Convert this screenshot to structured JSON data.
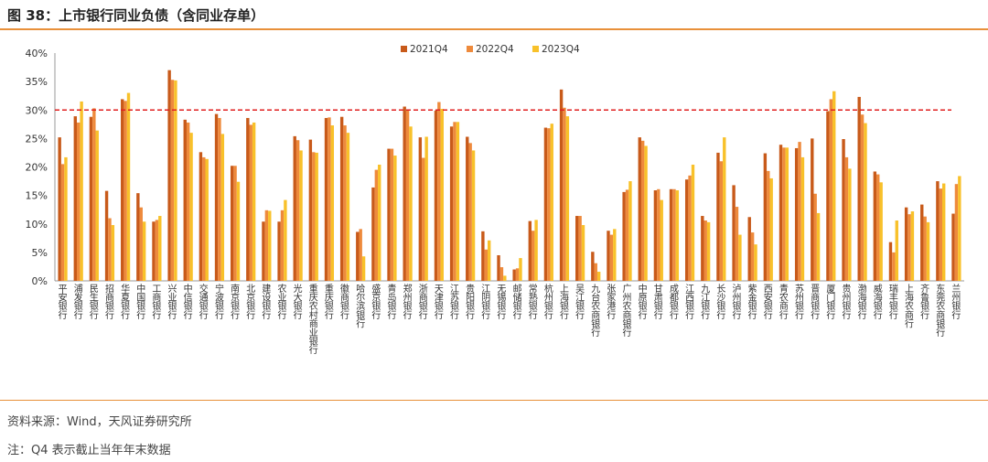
{
  "figure": {
    "title": "图 38：上市银行同业负债（含同业存单）",
    "source": "资料来源：Wind，天风证券研究所",
    "note": "注：Q4 表示截止当年年末数据"
  },
  "colors": {
    "s2021": "#C85A1A",
    "s2022": "#EE8A3C",
    "s2023": "#F8C12A",
    "refline": "#E02020",
    "rule": "#E8903A"
  },
  "chart_data": {
    "type": "bar",
    "title": "",
    "xlabel": "",
    "ylabel": "",
    "ylim": [
      0,
      40
    ],
    "yticks": [
      "0%",
      "5%",
      "10%",
      "15%",
      "20%",
      "25%",
      "30%",
      "35%",
      "40%"
    ],
    "grid": false,
    "legend": "top-center",
    "reference_line": 30,
    "categories": [
      "平安银行",
      "浦发银行",
      "民生银行",
      "招商银行",
      "华夏银行",
      "中国银行",
      "工商银行",
      "兴业银行",
      "中信银行",
      "交通银行",
      "宁波银行",
      "南京银行",
      "北京银行",
      "建设银行",
      "农业银行",
      "光大银行",
      "重庆农村商业银行",
      "重庆银行",
      "徽商银行",
      "哈尔滨银行",
      "盛京银行",
      "青岛银行",
      "郑州银行",
      "浙商银行",
      "天津银行",
      "江苏银行",
      "贵阳银行",
      "江阴银行",
      "无锡银行",
      "邮储银行",
      "常熟银行",
      "杭州银行",
      "上海银行",
      "吴江银行",
      "九台农商银行",
      "张家港行",
      "广州农商银行",
      "中原银行",
      "甘肃银行",
      "成都银行",
      "江西银行",
      "九江银行",
      "长沙银行",
      "泸州银行",
      "紫金银行",
      "西安银行",
      "青农商行",
      "苏州银行",
      "晋商银行",
      "厦门银行",
      "贵州银行",
      "渤海银行",
      "威海银行",
      "瑞丰银行",
      "上海农商行",
      "齐鲁银行",
      "东莞农商银行",
      "兰州银行"
    ],
    "series": [
      {
        "name": "2021Q4",
        "values": [
          25.2,
          28.9,
          28.8,
          15.8,
          31.9,
          15.4,
          10.4,
          37.0,
          28.3,
          22.6,
          29.3,
          20.2,
          28.6,
          10.4,
          10.4,
          25.4,
          24.8,
          28.6,
          28.8,
          8.6,
          16.4,
          23.2,
          30.6,
          25.2,
          29.9,
          27.1,
          25.3,
          8.7,
          4.5,
          2.0,
          10.5,
          26.9,
          33.6,
          11.4,
          5.1,
          8.8,
          15.6,
          25.2,
          15.9,
          16.1,
          17.8,
          11.4,
          22.5,
          16.8,
          11.2,
          22.4,
          23.9,
          23.3,
          25.0,
          29.8,
          24.9,
          32.3,
          19.2,
          6.8,
          12.9,
          13.4,
          17.5,
          11.8
        ]
      },
      {
        "name": "2022Q4",
        "values": [
          20.5,
          27.8,
          30.3,
          11.0,
          31.6,
          12.9,
          10.7,
          35.3,
          27.8,
          21.7,
          28.6,
          20.2,
          27.4,
          12.4,
          12.4,
          24.7,
          22.6,
          28.7,
          27.3,
          9.1,
          19.5,
          23.2,
          30.0,
          21.6,
          31.4,
          27.9,
          24.2,
          5.5,
          2.4,
          2.2,
          8.8,
          26.8,
          30.4,
          11.4,
          3.1,
          8.1,
          16.0,
          24.6,
          16.1,
          16.1,
          18.5,
          10.6,
          21.0,
          13.0,
          8.5,
          19.3,
          23.4,
          24.4,
          15.3,
          31.9,
          21.7,
          29.2,
          18.7,
          5.0,
          11.7,
          11.3,
          16.2,
          17.0
        ]
      },
      {
        "name": "2023Q4",
        "values": [
          21.7,
          31.5,
          26.4,
          9.8,
          33.0,
          10.4,
          11.4,
          35.2,
          26.0,
          21.4,
          25.8,
          17.4,
          27.8,
          12.3,
          14.2,
          22.9,
          22.5,
          27.3,
          26.0,
          4.3,
          20.4,
          22.0,
          27.1,
          25.3,
          30.2,
          27.9,
          22.9,
          7.1,
          0.9,
          4.0,
          10.7,
          27.6,
          28.9,
          9.8,
          1.6,
          9.1,
          17.5,
          23.7,
          14.2,
          15.9,
          20.4,
          10.3,
          25.2,
          8.1,
          6.4,
          18.0,
          23.4,
          21.7,
          11.9,
          33.3,
          19.7,
          27.7,
          17.3,
          10.6,
          12.2,
          10.3,
          17.1,
          18.4
        ]
      }
    ]
  }
}
